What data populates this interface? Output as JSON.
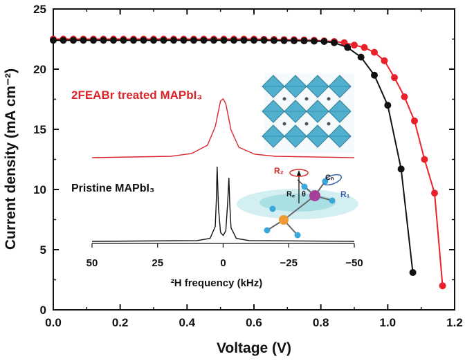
{
  "chart_data": [
    {
      "type": "line",
      "title": "",
      "xlabel": "Voltage (V)",
      "ylabel": "Current density (mA cm⁻²)",
      "xlim": [
        0,
        1.2
      ],
      "ylim": [
        0,
        25
      ],
      "x_ticks": [
        "0.0",
        "0.2",
        "0.4",
        "0.6",
        "0.8",
        "1.0",
        "1.2"
      ],
      "y_ticks": [
        "0",
        "5",
        "10",
        "15",
        "20",
        "25"
      ],
      "grid": false,
      "legend": "none",
      "series": [
        {
          "color": "#e8212b",
          "marker": "circle",
          "x": [
            0.0,
            0.03,
            0.06,
            0.09,
            0.12,
            0.15,
            0.18,
            0.21,
            0.24,
            0.27,
            0.3,
            0.33,
            0.36,
            0.39,
            0.42,
            0.45,
            0.48,
            0.51,
            0.54,
            0.57,
            0.6,
            0.63,
            0.66,
            0.69,
            0.72,
            0.75,
            0.78,
            0.81,
            0.84,
            0.87,
            0.9,
            0.93,
            0.96,
            0.99,
            1.02,
            1.05,
            1.08,
            1.11,
            1.14,
            1.164
          ],
          "y": [
            22.5,
            22.5,
            22.5,
            22.5,
            22.5,
            22.5,
            22.5,
            22.5,
            22.5,
            22.5,
            22.5,
            22.5,
            22.5,
            22.5,
            22.5,
            22.5,
            22.5,
            22.5,
            22.5,
            22.5,
            22.5,
            22.48,
            22.47,
            22.46,
            22.45,
            22.43,
            22.4,
            22.35,
            22.3,
            22.2,
            22.0,
            21.8,
            21.4,
            20.7,
            19.3,
            17.7,
            15.7,
            12.5,
            9.7,
            2.0
          ]
        },
        {
          "color": "#111111",
          "marker": "circle",
          "x": [
            0.0,
            0.03,
            0.06,
            0.09,
            0.12,
            0.15,
            0.18,
            0.21,
            0.24,
            0.27,
            0.3,
            0.33,
            0.36,
            0.39,
            0.42,
            0.45,
            0.48,
            0.51,
            0.54,
            0.57,
            0.6,
            0.63,
            0.66,
            0.69,
            0.72,
            0.75,
            0.78,
            0.81,
            0.84,
            0.88,
            0.92,
            0.96,
            1.0,
            1.04,
            1.075
          ],
          "y": [
            22.4,
            22.4,
            22.4,
            22.4,
            22.4,
            22.4,
            22.4,
            22.4,
            22.4,
            22.4,
            22.4,
            22.4,
            22.4,
            22.4,
            22.4,
            22.4,
            22.4,
            22.4,
            22.4,
            22.4,
            22.4,
            22.4,
            22.38,
            22.37,
            22.36,
            22.35,
            22.33,
            22.3,
            22.2,
            21.8,
            21.0,
            19.5,
            17.0,
            11.7,
            3.1
          ]
        }
      ]
    },
    {
      "type": "line",
      "title": "",
      "xlabel": "²H frequency (kHz)",
      "ylabel": "",
      "xlim": [
        50,
        -50
      ],
      "x_ticks": [
        "50",
        "25",
        "0",
        "−25",
        "−50"
      ],
      "legend": "none",
      "series": [
        {
          "name": "2FEABr treated MAPbI₃",
          "color": "#d9262b",
          "x": [
            50,
            20,
            12,
            6,
            3,
            1,
            0,
            -1,
            -3,
            -6,
            -12,
            -20,
            -50
          ],
          "y": [
            0.0,
            0.02,
            0.06,
            0.18,
            0.45,
            0.82,
            0.85,
            0.78,
            0.4,
            0.15,
            0.05,
            0.02,
            0.0
          ]
        },
        {
          "name": "Pristine MAPbI₃",
          "color": "#111111",
          "x": [
            50,
            10,
            5,
            3,
            2.6,
            2.3,
            1.8,
            1,
            0,
            -1,
            -1.7,
            -2.2,
            -2.5,
            -3,
            -5,
            -10,
            -50
          ],
          "y": [
            0.0,
            0.01,
            0.04,
            0.2,
            0.55,
            1.0,
            0.45,
            0.12,
            0.08,
            0.14,
            0.5,
            0.85,
            0.5,
            0.18,
            0.04,
            0.01,
            0.0
          ]
        }
      ]
    }
  ],
  "inset": {
    "labels": {
      "r2": "R₂",
      "rc": "R꜀",
      "theta": "θ",
      "cn": "Cₙ",
      "r1": "R₁"
    }
  },
  "colors": {
    "treated": "#e8212b",
    "pristine": "#111111",
    "octahedra": "#3fa9c9",
    "ring": "#8fd3d8"
  }
}
